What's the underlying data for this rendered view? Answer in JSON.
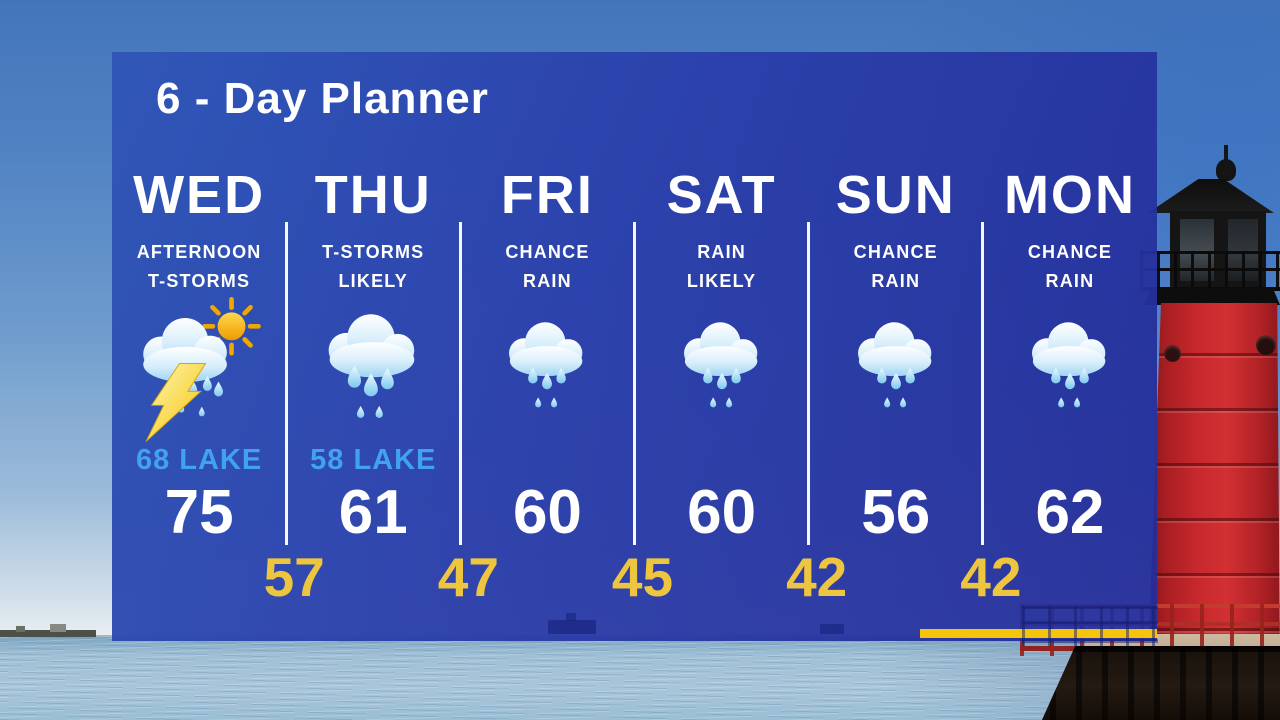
{
  "title": "6 - Day Planner",
  "days": [
    {
      "name": "WED",
      "condition_line1": "AFTERNOON",
      "condition_line2": "T-STORMS",
      "icon": "storm-sun-icon",
      "lake": "68 LAKE",
      "high": "75"
    },
    {
      "name": "THU",
      "condition_line1": "T-STORMS",
      "condition_line2": "LIKELY",
      "icon": "rain-heavy-icon",
      "lake": "58 LAKE",
      "high": "61"
    },
    {
      "name": "FRI",
      "condition_line1": "CHANCE",
      "condition_line2": "RAIN",
      "icon": "rain-icon",
      "lake": "",
      "high": "60"
    },
    {
      "name": "SAT",
      "condition_line1": "RAIN",
      "condition_line2": "LIKELY",
      "icon": "rain-icon",
      "lake": "",
      "high": "60"
    },
    {
      "name": "SUN",
      "condition_line1": "CHANCE",
      "condition_line2": "RAIN",
      "icon": "rain-icon",
      "lake": "",
      "high": "56"
    },
    {
      "name": "MON",
      "condition_line1": "CHANCE",
      "condition_line2": "RAIN",
      "icon": "rain-icon",
      "lake": "",
      "high": "62"
    }
  ],
  "lows": [
    "57",
    "47",
    "45",
    "42",
    "42"
  ],
  "colors": {
    "panel_top": "#2F56B8",
    "panel_bottom": "#232C98",
    "divider_white": "#FFFFFF",
    "text_white": "#FFFFFF",
    "lake_blue": "#3FA2F2",
    "low_yellow": "#EEC53E",
    "underline_yellow": "#F6C50B",
    "lighthouse_red": "#C1282C"
  },
  "chart_data": {
    "type": "table",
    "title": "6 - Day Planner",
    "categories": [
      "WED",
      "THU",
      "FRI",
      "SAT",
      "SUN",
      "MON"
    ],
    "series": [
      {
        "name": "condition",
        "values": [
          "AFTERNOON T-STORMS",
          "T-STORMS LIKELY",
          "CHANCE RAIN",
          "RAIN LIKELY",
          "CHANCE RAIN",
          "CHANCE RAIN"
        ]
      },
      {
        "name": "lake_temperature",
        "values": [
          68,
          58,
          null,
          null,
          null,
          null
        ]
      },
      {
        "name": "high_temperature",
        "values": [
          75,
          61,
          60,
          60,
          56,
          62
        ]
      },
      {
        "name": "overnight_low_between_days",
        "values": [
          57,
          47,
          45,
          42,
          42
        ]
      }
    ]
  }
}
